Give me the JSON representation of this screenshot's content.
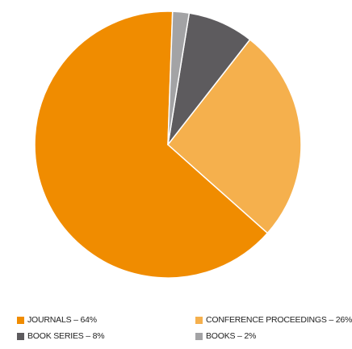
{
  "chart_data": {
    "type": "pie",
    "title": "",
    "slices": [
      {
        "label": "JOURNALS",
        "legend_text": "JOURNALS – 64%",
        "value": 64,
        "color": "#f08c00"
      },
      {
        "label": "CONFERENCE PROCEEDINGS",
        "legend_text": "CONFERENCE PROCEEDINGS – 26%",
        "value": 26,
        "color": "#f5b04d"
      },
      {
        "label": "BOOK SERIES",
        "legend_text": "BOOK SERIES – 8%",
        "value": 8,
        "color": "#5d5b5e"
      },
      {
        "label": "BOOKS",
        "legend_text": "BOOKS – 2%",
        "value": 2,
        "color": "#a3a3a5"
      }
    ],
    "legend": {
      "placement": "bottom"
    }
  }
}
